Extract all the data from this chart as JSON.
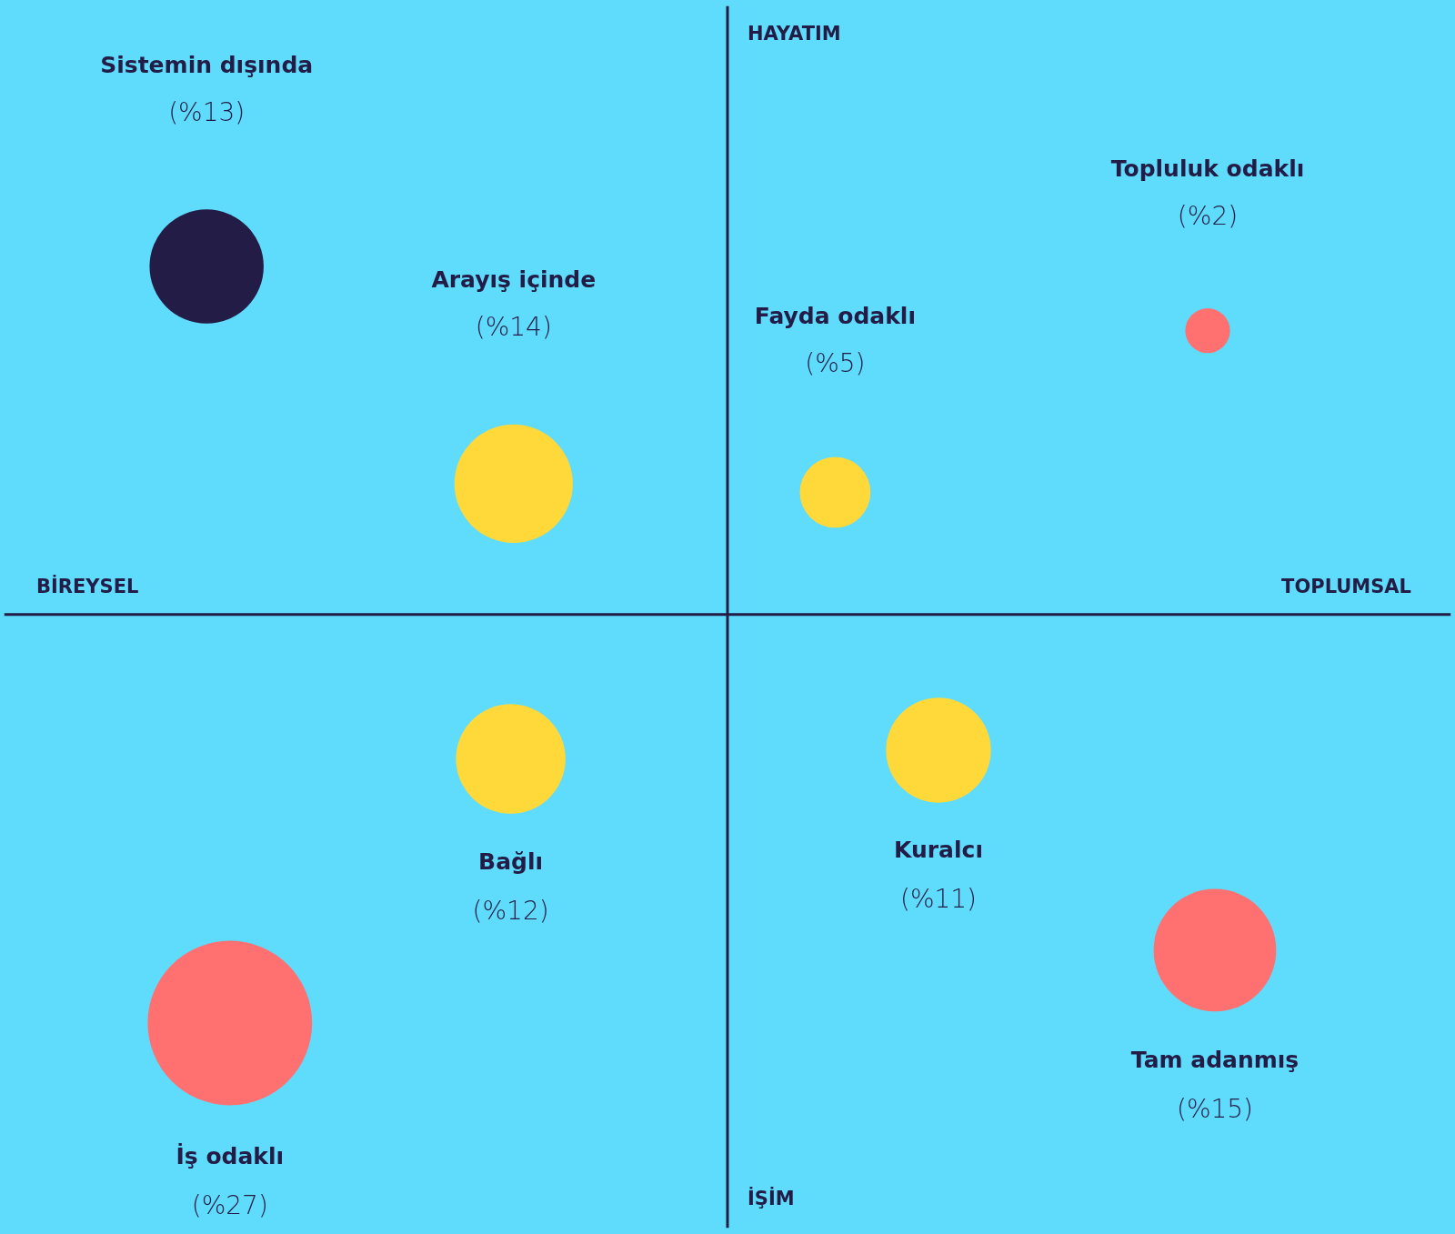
{
  "chart_data": {
    "type": "other",
    "categories": [
      "Sistemin dışında",
      "Arayış içinde",
      "Fayda odaklı",
      "Topluluk odaklı",
      "Bağlı",
      "Kuralcı",
      "Tam adanmış",
      "İş odaklı"
    ],
    "values": [
      13,
      14,
      5,
      2,
      12,
      11,
      15,
      27
    ],
    "value_labels": [
      "(%13)",
      "(%14)",
      "(%5)",
      "(%2)",
      "(%12)",
      "(%11)",
      "(%15)",
      "(%27)"
    ],
    "colors": [
      "#231c46",
      "#ffd93a",
      "#ffd93a",
      "#ff7171",
      "#ffd93a",
      "#ffd93a",
      "#ff7171",
      "#ff7171"
    ],
    "annotations": [
      "HAYATIM",
      "İŞİM",
      "BİREYSEL",
      "TOPLUMSAL"
    ]
  }
}
